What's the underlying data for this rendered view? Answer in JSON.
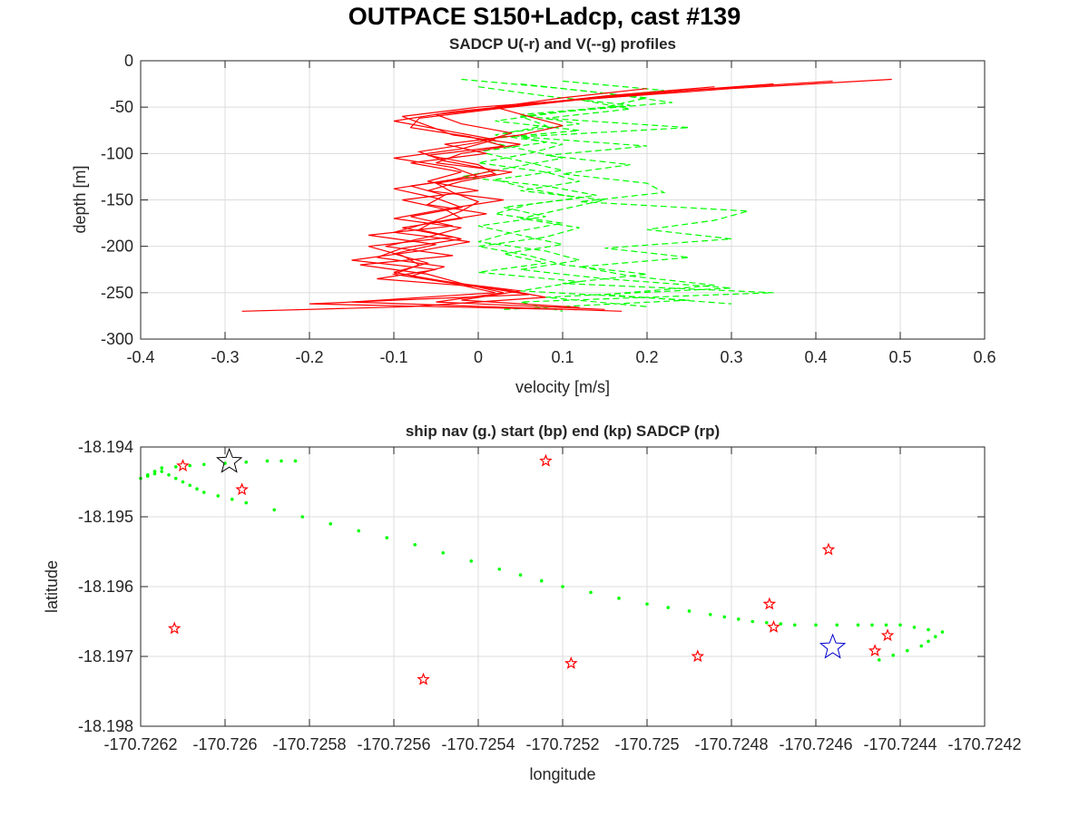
{
  "figure": {
    "title": "OUTPACE S150+Ladcp, cast #139"
  },
  "colors": {
    "u_series": "#ff0000",
    "v_series": "#00ff00",
    "nav_track": "#00ff00",
    "sadcp_markers": "#ff0000",
    "start_marker": "#0000cc",
    "end_marker": "#000000"
  },
  "chart_data": [
    {
      "type": "line",
      "title": "SADCP U(-r) and V(--g) profiles",
      "xlabel": "velocity [m/s]",
      "ylabel": "depth [m]",
      "xlim": [
        -0.4,
        0.6
      ],
      "ylim": [
        -300,
        0
      ],
      "xticks": [
        "-0.4",
        "-0.3",
        "-0.2",
        "-0.1",
        "0",
        "0.1",
        "0.2",
        "0.3",
        "0.4",
        "0.5",
        "0.6"
      ],
      "yticks": [
        "0",
        "-50",
        "-100",
        "-150",
        "-200",
        "-250",
        "-300"
      ],
      "grid": true,
      "series": [
        {
          "style": "solid-red",
          "profiles": [
            {
              "depth": [
                -20,
                -30,
                -40,
                -50,
                -60,
                -70,
                -80,
                -90,
                -100,
                -110,
                -120,
                -130,
                -140,
                -150,
                -160,
                -170,
                -180,
                -190,
                -200,
                -210,
                -220,
                -230,
                -240,
                -250,
                -260,
                -270
              ],
              "velocity": [
                0.49,
                0.3,
                0.15,
                0.0,
                -0.09,
                -0.06,
                -0.03,
                0.05,
                -0.02,
                -0.05,
                0.04,
                -0.02,
                -0.06,
                0.03,
                -0.04,
                -0.02,
                -0.09,
                -0.03,
                -0.13,
                -0.09,
                -0.07,
                -0.1,
                -0.03,
                0.02,
                -0.15,
                0.17
              ]
            },
            {
              "depth": [
                -22,
                -32,
                -42,
                -52,
                -62,
                -72,
                -82,
                -92,
                -102,
                -112,
                -122,
                -132,
                -142,
                -152,
                -162,
                -172,
                -182,
                -192,
                -202,
                -212,
                -222,
                -232,
                -242,
                -252,
                -262,
                -268
              ],
              "velocity": [
                0.42,
                0.25,
                0.12,
                0.02,
                -0.07,
                -0.08,
                -0.01,
                0.03,
                -0.06,
                0.0,
                0.02,
                -0.05,
                -0.03,
                0.0,
                -0.02,
                -0.05,
                -0.07,
                -0.02,
                -0.09,
                -0.12,
                -0.04,
                -0.08,
                -0.01,
                0.06,
                -0.2,
                0.1
              ]
            },
            {
              "depth": [
                -25,
                -35,
                -45,
                -55,
                -65,
                -75,
                -85,
                -95,
                -105,
                -115,
                -125,
                -135,
                -145,
                -155,
                -165,
                -175,
                -185,
                -195,
                -205,
                -215,
                -225,
                -235,
                -245,
                -255,
                -265,
                -270
              ],
              "velocity": [
                0.35,
                0.2,
                0.08,
                -0.03,
                -0.1,
                -0.04,
                0.02,
                -0.02,
                -0.1,
                -0.03,
                0.0,
                -0.08,
                -0.04,
                -0.06,
                0.01,
                -0.06,
                -0.1,
                -0.01,
                -0.07,
                -0.15,
                -0.05,
                -0.12,
                0.02,
                0.08,
                -0.08,
                -0.28
              ]
            },
            {
              "depth": [
                -28,
                -38,
                -48,
                -58,
                -68,
                -78,
                -88,
                -98,
                -108,
                -118,
                -128,
                -138,
                -148,
                -158,
                -168,
                -178,
                -188,
                -198,
                -208,
                -218,
                -228,
                -238,
                -248,
                -258,
                -266
              ],
              "velocity": [
                0.28,
                0.15,
                0.05,
                -0.05,
                -0.02,
                0.04,
                0.0,
                -0.07,
                -0.04,
                0.02,
                -0.03,
                -0.1,
                -0.05,
                -0.02,
                -0.08,
                -0.03,
                -0.13,
                -0.05,
                -0.1,
                -0.06,
                -0.1,
                -0.04,
                0.05,
                -0.02,
                0.12
              ]
            },
            {
              "depth": [
                -30,
                -40,
                -50,
                -60,
                -70,
                -80,
                -90,
                -100,
                -110,
                -120,
                -130,
                -140,
                -150,
                -160,
                -170,
                -180,
                -190,
                -200,
                -210,
                -220,
                -230,
                -240,
                -250,
                -260,
                -268
              ],
              "velocity": [
                0.2,
                0.1,
                0.02,
                0.06,
                0.1,
                0.05,
                -0.04,
                0.01,
                -0.08,
                -0.02,
                -0.06,
                0.0,
                -0.09,
                -0.04,
                -0.1,
                -0.02,
                -0.06,
                -0.11,
                -0.03,
                -0.14,
                -0.06,
                -0.02,
                0.03,
                -0.05,
                0.15
              ]
            }
          ]
        },
        {
          "style": "dashed-green",
          "profiles": [
            {
              "depth": [
                -20,
                -30,
                -40,
                -50,
                -60,
                -70,
                -80,
                -90,
                -100,
                -110,
                -120,
                -130,
                -140,
                -150,
                -160,
                -170,
                -180,
                -190,
                -200,
                -210,
                -220,
                -230,
                -240,
                -250,
                -260,
                -270
              ],
              "velocity": [
                -0.02,
                0.1,
                0.2,
                0.15,
                0.05,
                0.08,
                0.02,
                0.1,
                0.06,
                0.0,
                0.08,
                0.12,
                0.05,
                0.15,
                0.1,
                0.05,
                0.12,
                0.08,
                0.0,
                0.06,
                0.1,
                0.2,
                0.1,
                0.35,
                0.05,
                0.1
              ]
            },
            {
              "depth": [
                -25,
                -35,
                -45,
                -55,
                -65,
                -75,
                -85,
                -95,
                -105,
                -115,
                -125,
                -135,
                -145,
                -155,
                -165,
                -175,
                -185,
                -195,
                -205,
                -215,
                -225,
                -235,
                -245,
                -255,
                -265
              ],
              "velocity": [
                0.05,
                0.15,
                0.23,
                0.1,
                0.02,
                0.12,
                0.0,
                0.05,
                0.1,
                0.04,
                -0.02,
                0.08,
                0.14,
                0.06,
                0.02,
                0.1,
                0.04,
                0.0,
                0.08,
                0.12,
                0.05,
                0.15,
                0.3,
                0.08,
                0.2
              ]
            },
            {
              "depth": [
                -22,
                -32,
                -42,
                -52,
                -62,
                -72,
                -82,
                -92,
                -102,
                -112,
                -122,
                -132,
                -142,
                -152,
                -162,
                -172,
                -182,
                -192,
                -202,
                -212,
                -222,
                -232,
                -242,
                -252,
                -262
              ],
              "velocity": [
                0.1,
                0.22,
                0.12,
                0.18,
                0.08,
                0.25,
                0.05,
                0.2,
                0.08,
                0.18,
                0.1,
                0.2,
                0.22,
                0.12,
                0.32,
                0.28,
                0.2,
                0.3,
                0.15,
                0.25,
                0.12,
                0.18,
                0.28,
                0.15,
                0.3
              ]
            },
            {
              "depth": [
                -28,
                -38,
                -48,
                -58,
                -68,
                -78,
                -88,
                -98,
                -108,
                -118,
                -128,
                -138,
                -148,
                -158,
                -168,
                -178,
                -188,
                -198,
                -208,
                -218,
                -228,
                -238,
                -248,
                -258,
                -268
              ],
              "velocity": [
                0.0,
                0.08,
                0.18,
                0.05,
                0.12,
                0.03,
                0.08,
                0.0,
                0.05,
                0.1,
                0.02,
                0.06,
                0.12,
                0.03,
                0.08,
                0.0,
                0.05,
                0.1,
                0.03,
                0.08,
                0.0,
                0.12,
                0.05,
                0.25,
                0.03
              ]
            }
          ]
        }
      ]
    },
    {
      "type": "scatter",
      "title": "ship nav (g.) start (bp) end (kp) SADCP (rp)",
      "xlabel": "longitude",
      "ylabel": "latitude",
      "xlim": [
        -170.7262,
        -170.7242
      ],
      "ylim": [
        -18.198,
        -18.194
      ],
      "xticks": [
        "-170.7262",
        "-170.726",
        "-170.7258",
        "-170.7256",
        "-170.7254",
        "-170.7252",
        "-170.725",
        "-170.7248",
        "-170.7246",
        "-170.7244",
        "-170.7242"
      ],
      "yticks": [
        "-18.194",
        "-18.195",
        "-18.196",
        "-18.197",
        "-18.198"
      ],
      "grid": true,
      "nav_track": {
        "lon": [
          -170.72445,
          -170.72435,
          -170.7243,
          -170.7244,
          -170.7245,
          -170.72465,
          -170.72475,
          -170.72485,
          -170.725,
          -170.7252,
          -170.72535,
          -170.72555,
          -170.72575,
          -170.72595,
          -170.72605,
          -170.7261,
          -170.72615,
          -170.7262,
          -170.72615,
          -170.72605,
          -170.7259,
          -170.7258
        ],
        "lat": [
          -18.19705,
          -18.19685,
          -18.19665,
          -18.19655,
          -18.19655,
          -18.19655,
          -18.1965,
          -18.1964,
          -18.19625,
          -18.196,
          -18.19575,
          -18.1954,
          -18.1951,
          -18.1948,
          -18.19465,
          -18.1945,
          -18.19435,
          -18.19445,
          -18.1943,
          -18.19425,
          -18.1942,
          -18.1942
        ]
      },
      "sadcp_points": {
        "lon": [
          -170.7261,
          -170.72596,
          -170.72524,
          -170.72457,
          -170.72471,
          -170.72612,
          -170.72553,
          -170.72518,
          -170.72488,
          -170.72446,
          -170.7247,
          -170.72443
        ],
        "lat": [
          -18.19427,
          -18.19461,
          -18.1942,
          -18.19547,
          -18.19625,
          -18.1966,
          -18.19733,
          -18.1971,
          -18.197,
          -18.19692,
          -18.19658,
          -18.1967
        ]
      },
      "start": {
        "lon": -170.72456,
        "lat": -18.19687
      },
      "end": {
        "lon": -170.72599,
        "lat": -18.19421
      }
    }
  ]
}
